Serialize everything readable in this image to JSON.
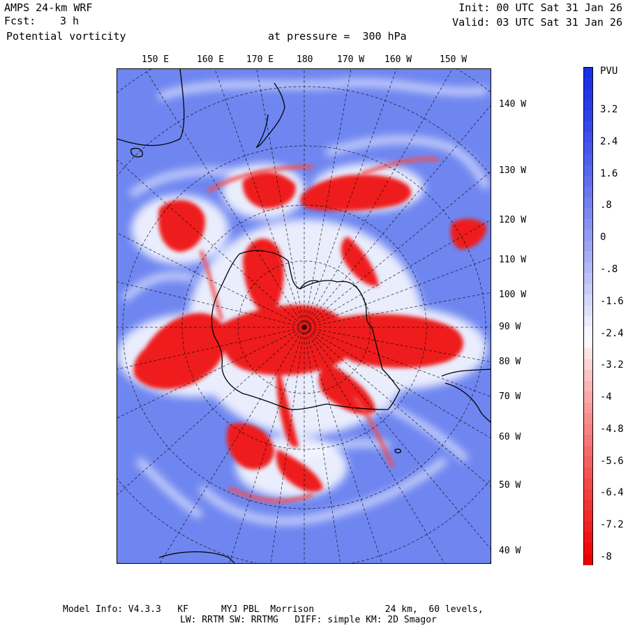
{
  "header": {
    "model": "AMPS 24-km WRF",
    "fcst_label": "Fcst:",
    "fcst_value": "3 h",
    "field": "Potential vorticity",
    "level_text": "at pressure =  300 hPa",
    "init": "Init: 00 UTC Sat 31 Jan 26",
    "valid": "Valid: 03 UTC Sat 31 Jan 26"
  },
  "top_longitude_labels": [
    "150 E",
    "160 E",
    "170 E",
    "180",
    "170 W",
    "160 W",
    "150 W"
  ],
  "right_longitude_labels": [
    "140 W",
    "130 W",
    "120 W",
    "110 W",
    "100 W",
    "90 W",
    "80 W",
    "70 W",
    "60 W",
    "50 W",
    "40 W"
  ],
  "colorbar": {
    "unit": "PVU",
    "labels": [
      "3.2",
      "2.4",
      "1.6",
      ".8",
      "0",
      "-.8",
      "-1.6",
      "-2.4",
      "-3.2",
      "-4",
      "-4.8",
      "-5.6",
      "-6.4",
      "-7.2",
      "-8"
    ],
    "colors": {
      "positive_max": "#1a2ee6",
      "near_zero": "#ffffff",
      "negative_max": "#ee0000"
    }
  },
  "footer": {
    "line1": "Model Info: V4.3.3   KF      MYJ PBL  Morrison             24 km,  60 levels,",
    "line2": "LW: RRTM SW: RRTMG   DIFF: simple KM: 2D Smagor"
  }
}
